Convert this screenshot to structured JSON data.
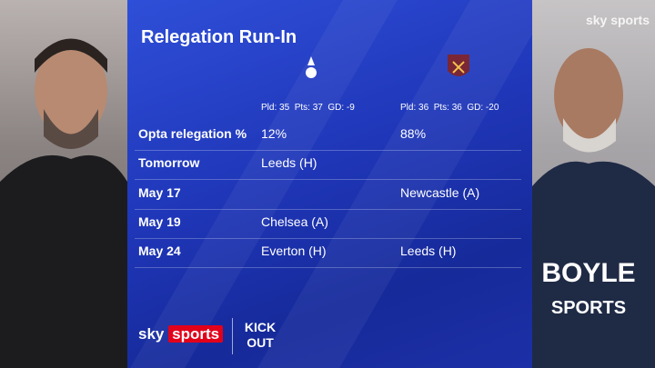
{
  "header": {
    "title": "Relegation Run-In",
    "watermark": "sky sports"
  },
  "teams": [
    {
      "stats": "Pld: 35  Pts: 37  GD: -9"
    },
    {
      "stats": "Pld: 36  Pts: 36  GD: -20"
    }
  ],
  "table": {
    "rows": [
      [
        "Opta relegation %",
        "12%",
        "88%"
      ],
      [
        "Tomorrow",
        "Leeds (H)",
        null
      ],
      [
        "May 17",
        null,
        "Newcastle (A)"
      ],
      [
        "May 19",
        "Chelsea (A)",
        null
      ],
      [
        "May 24",
        "Everton (H)",
        "Leeds (H)"
      ]
    ]
  },
  "footer": {
    "brand_sky": "sky",
    "brand_sports": "sports",
    "partner": "KICK OUT"
  },
  "photos": {
    "right_shirt_line1": "BOYLE",
    "right_shirt_line2": "SPORTS"
  }
}
